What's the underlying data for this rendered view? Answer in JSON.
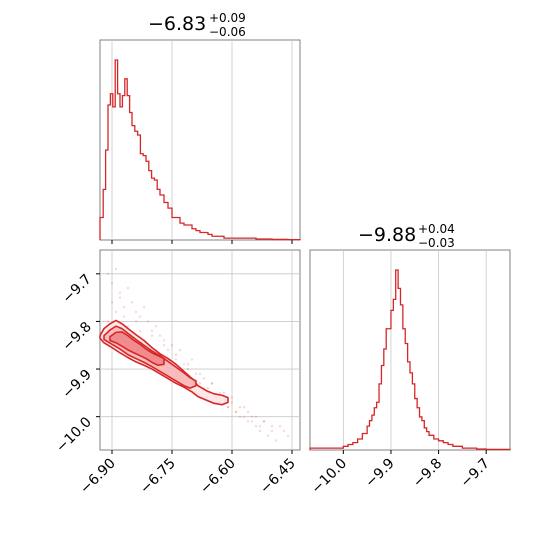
{
  "colors": {
    "series": "#d62728",
    "fill": "#f4a1a2",
    "grid": "#c8c8c8",
    "frame": "#808080"
  },
  "chart_data": {
    "type": "corner",
    "parameters": [
      {
        "median": "−6.83",
        "upper": "+0.09",
        "lower": "−0.06"
      },
      {
        "median": "−9.88",
        "upper": "+0.04",
        "lower": "−0.03"
      }
    ],
    "x_param1_ticks": [
      "−6.90",
      "−6.75",
      "−6.60",
      "−6.45"
    ],
    "y_param2_ticks": [
      "−9.7",
      "−9.8",
      "−9.9",
      "−10.0"
    ],
    "x_param2_ticks": [
      "−10.0",
      "−9.9",
      "−9.8",
      "−9.7"
    ],
    "x_param1_range": [
      -6.93,
      -6.43
    ],
    "x_param2_range": [
      -10.07,
      -9.65
    ],
    "grid": true,
    "hist_param1": {
      "type": "histogram",
      "bin_edges": [
        -6.93,
        -6.922,
        -6.916,
        -6.91,
        -6.904,
        -6.898,
        -6.892,
        -6.886,
        -6.88,
        -6.874,
        -6.868,
        -6.862,
        -6.856,
        -6.85,
        -6.843,
        -6.836,
        -6.829,
        -6.822,
        -6.815,
        -6.808,
        -6.801,
        -6.794,
        -6.787,
        -6.78,
        -6.77,
        -6.76,
        -6.75,
        -6.74,
        -6.73,
        -6.72,
        -6.71,
        -6.7,
        -6.69,
        -6.68,
        -6.67,
        -6.66,
        -6.65,
        -6.64,
        -6.63,
        -6.62,
        -6.61,
        -6.6,
        -6.59,
        -6.58,
        -6.56,
        -6.54,
        -6.52,
        -6.5,
        -6.48,
        -6.46,
        -6.44,
        -6.43
      ],
      "counts": [
        0.12,
        0.27,
        0.48,
        0.72,
        0.78,
        0.71,
        0.96,
        0.78,
        0.71,
        0.77,
        0.86,
        0.77,
        0.68,
        0.61,
        0.58,
        0.56,
        0.46,
        0.45,
        0.42,
        0.37,
        0.33,
        0.32,
        0.27,
        0.24,
        0.2,
        0.17,
        0.12,
        0.12,
        0.09,
        0.08,
        0.08,
        0.06,
        0.05,
        0.04,
        0.04,
        0.03,
        0.02,
        0.02,
        0.02,
        0.01,
        0.01,
        0.01,
        0.01,
        0.01,
        0.01,
        0.005,
        0.005,
        0.003,
        0.003,
        0.002,
        0.002
      ]
    },
    "hist_param2": {
      "type": "histogram",
      "bin_edges": [
        -10.07,
        -10.0,
        -9.99,
        -9.98,
        -9.97,
        -9.96,
        -9.95,
        -9.945,
        -9.94,
        -9.935,
        -9.93,
        -9.925,
        -9.92,
        -9.915,
        -9.91,
        -9.905,
        -9.9,
        -9.895,
        -9.89,
        -9.885,
        -9.88,
        -9.875,
        -9.87,
        -9.865,
        -9.86,
        -9.855,
        -9.85,
        -9.845,
        -9.84,
        -9.835,
        -9.83,
        -9.825,
        -9.82,
        -9.81,
        -9.8,
        -9.79,
        -9.78,
        -9.77,
        -9.76,
        -9.75,
        -9.74,
        -9.72,
        -9.7,
        -9.65
      ],
      "counts": [
        0.01,
        0.02,
        0.03,
        0.04,
        0.06,
        0.09,
        0.13,
        0.16,
        0.19,
        0.23,
        0.26,
        0.36,
        0.46,
        0.55,
        0.66,
        0.66,
        0.76,
        0.82,
        0.98,
        0.88,
        0.79,
        0.66,
        0.58,
        0.48,
        0.42,
        0.36,
        0.28,
        0.23,
        0.18,
        0.16,
        0.12,
        0.1,
        0.08,
        0.06,
        0.05,
        0.04,
        0.03,
        0.02,
        0.02,
        0.01,
        0.01,
        0.005,
        0.003
      ]
    },
    "scatter_2d": {
      "type": "scatter",
      "x": [
        -6.92,
        -6.91,
        -6.9,
        -6.89,
        -6.88,
        -6.87,
        -6.86,
        -6.85,
        -6.84,
        -6.83,
        -6.82,
        -6.81,
        -6.8,
        -6.79,
        -6.78,
        -6.77,
        -6.76,
        -6.75,
        -6.74,
        -6.73,
        -6.72,
        -6.71,
        -6.7,
        -6.69,
        -6.68,
        -6.67,
        -6.66,
        -6.65,
        -6.64,
        -6.63,
        -6.62,
        -6.61,
        -6.6,
        -6.59,
        -6.58,
        -6.57,
        -6.56,
        -6.55,
        -6.54,
        -6.53,
        -6.52,
        -6.5,
        -6.48,
        -6.46,
        -6.91,
        -6.9,
        -6.89,
        -6.88,
        -6.87,
        -6.86,
        -6.85,
        -6.84,
        -6.83,
        -6.82,
        -6.81,
        -6.8,
        -6.79,
        -6.78,
        -6.77,
        -6.76,
        -6.75,
        -6.74,
        -6.73,
        -6.72,
        -6.71,
        -6.7,
        -6.69,
        -6.68,
        -6.67,
        -6.66,
        -6.65,
        -6.64,
        -6.63,
        -6.62,
        -6.61,
        -6.6,
        -6.59,
        -6.58,
        -6.57,
        -6.56,
        -6.55,
        -6.54,
        -6.53,
        -6.52,
        -6.51,
        -6.5,
        -6.49,
        -6.47
      ],
      "y": [
        -9.82,
        -9.8,
        -9.76,
        -9.78,
        -9.74,
        -9.79,
        -9.81,
        -9.83,
        -9.8,
        -9.82,
        -9.84,
        -9.85,
        -9.83,
        -9.86,
        -9.87,
        -9.85,
        -9.88,
        -9.89,
        -9.87,
        -9.9,
        -9.91,
        -9.89,
        -9.92,
        -9.93,
        -9.91,
        -9.94,
        -9.95,
        -9.93,
        -9.96,
        -9.97,
        -9.95,
        -9.98,
        -9.97,
        -9.99,
        -9.98,
        -10.0,
        -9.99,
        -10.01,
        -10.0,
        -10.02,
        -10.01,
        -10.03,
        -10.02,
        -10.04,
        -9.7,
        -9.72,
        -9.69,
        -9.75,
        -9.77,
        -9.73,
        -9.76,
        -9.78,
        -9.79,
        -9.77,
        -9.8,
        -9.82,
        -9.81,
        -9.83,
        -9.84,
        -9.86,
        -9.85,
        -9.88,
        -9.86,
        -9.89,
        -9.9,
        -9.88,
        -9.91,
        -9.93,
        -9.92,
        -9.94,
        -9.93,
        -9.96,
        -9.95,
        -9.97,
        -9.98,
        -9.96,
        -9.99,
        -10.0,
        -9.98,
        -10.01,
        -10.0,
        -10.02,
        -10.03,
        -10.01,
        -10.04,
        -10.02,
        -10.05,
        -10.03
      ]
    },
    "contour_levels": [
      {
        "level": "outer",
        "x": [
          -6.93,
          -6.92,
          -6.905,
          -6.89,
          -6.875,
          -6.86,
          -6.84,
          -6.82,
          -6.8,
          -6.78,
          -6.76,
          -6.74,
          -6.72,
          -6.7,
          -6.685,
          -6.665,
          -6.645,
          -6.625,
          -6.61,
          -6.61,
          -6.625,
          -6.645,
          -6.665,
          -6.685,
          -6.7,
          -6.72,
          -6.74,
          -6.76,
          -6.78,
          -6.8,
          -6.82,
          -6.84,
          -6.86,
          -6.88,
          -6.9,
          -6.92,
          -6.93
        ],
        "y": [
          -9.83,
          -9.815,
          -9.805,
          -9.798,
          -9.805,
          -9.815,
          -9.828,
          -9.84,
          -9.855,
          -9.868,
          -9.878,
          -9.89,
          -9.905,
          -9.92,
          -9.935,
          -9.945,
          -9.952,
          -9.955,
          -9.96,
          -9.97,
          -9.975,
          -9.972,
          -9.965,
          -9.958,
          -9.948,
          -9.938,
          -9.93,
          -9.92,
          -9.91,
          -9.9,
          -9.892,
          -9.885,
          -9.876,
          -9.866,
          -9.855,
          -9.845,
          -9.835
        ]
      },
      {
        "level": "middle",
        "x": [
          -6.92,
          -6.905,
          -6.89,
          -6.875,
          -6.86,
          -6.84,
          -6.82,
          -6.8,
          -6.78,
          -6.76,
          -6.74,
          -6.72,
          -6.705,
          -6.69,
          -6.69,
          -6.705,
          -6.72,
          -6.74,
          -6.76,
          -6.78,
          -6.8,
          -6.82,
          -6.84,
          -6.86,
          -6.88,
          -6.9,
          -6.92
        ],
        "y": [
          -9.83,
          -9.818,
          -9.81,
          -9.815,
          -9.825,
          -9.838,
          -9.85,
          -9.862,
          -9.872,
          -9.884,
          -9.896,
          -9.908,
          -9.918,
          -9.925,
          -9.935,
          -9.94,
          -9.935,
          -9.925,
          -9.915,
          -9.905,
          -9.895,
          -9.886,
          -9.878,
          -9.87,
          -9.858,
          -9.848,
          -9.838
        ]
      },
      {
        "level": "inner",
        "x": [
          -6.905,
          -6.89,
          -6.875,
          -6.86,
          -6.845,
          -6.83,
          -6.815,
          -6.8,
          -6.785,
          -6.77,
          -6.77,
          -6.785,
          -6.8,
          -6.815,
          -6.83,
          -6.845,
          -6.86,
          -6.875,
          -6.89,
          -6.905
        ],
        "y": [
          -9.832,
          -9.823,
          -9.822,
          -9.83,
          -9.84,
          -9.848,
          -9.858,
          -9.866,
          -9.872,
          -9.878,
          -9.89,
          -9.892,
          -9.886,
          -9.878,
          -9.872,
          -9.866,
          -9.86,
          -9.852,
          -9.845,
          -9.84
        ]
      }
    ]
  }
}
